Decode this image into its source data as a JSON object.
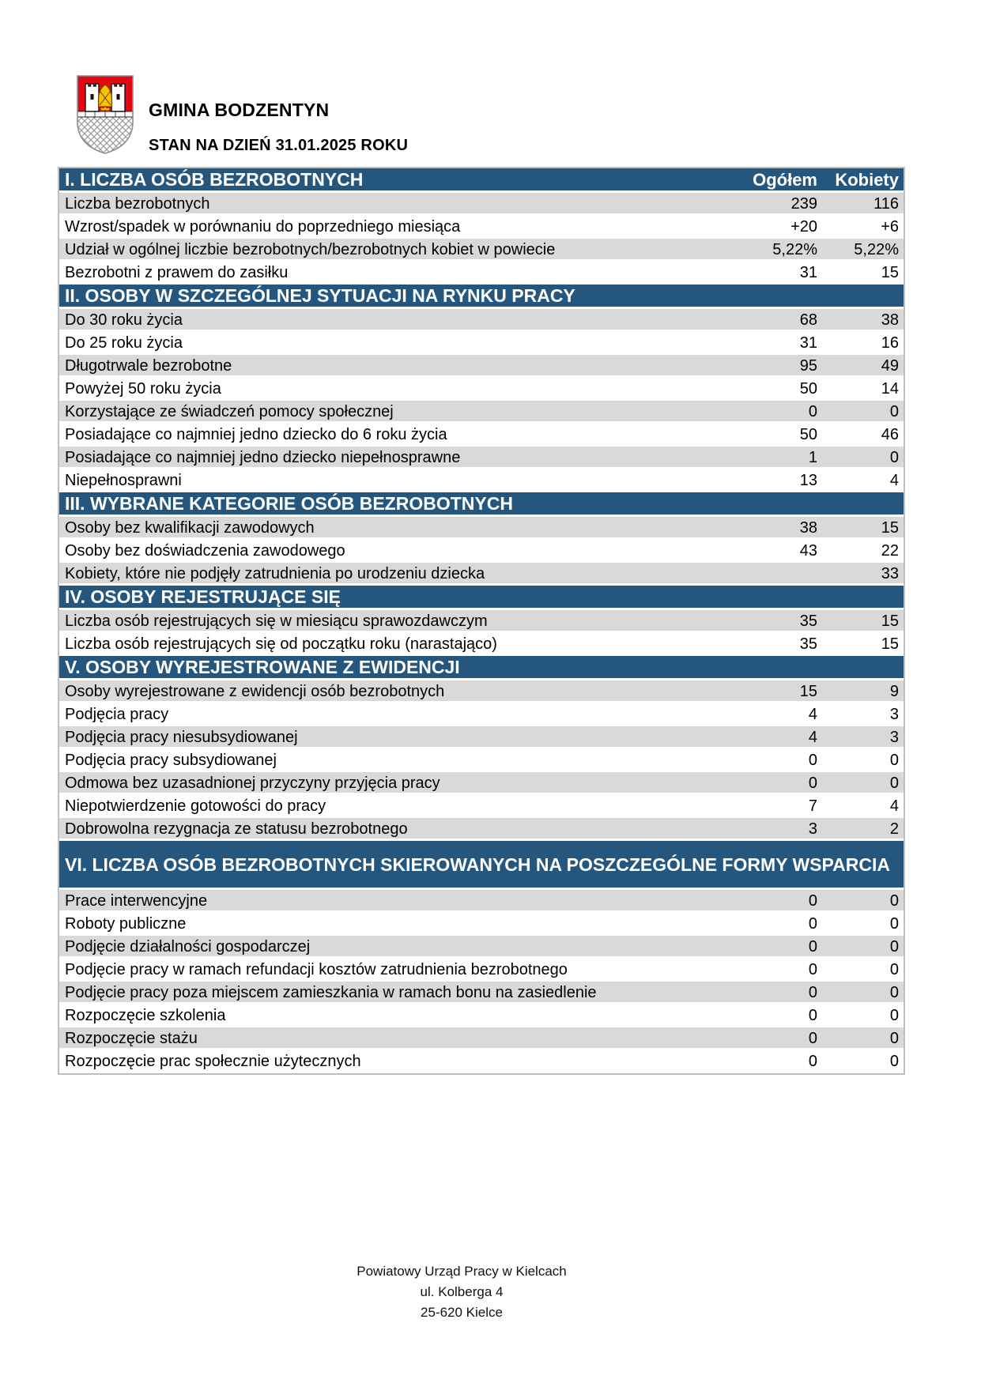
{
  "header": {
    "org_name": "GMINA BODZENTYN",
    "status_line": "STAN NA DZIEŃ 31.01.2025 ROKU",
    "logo_alt": "bodzentyn-coat-of-arms"
  },
  "table": {
    "columns": [
      "Ogółem",
      "Kobiety"
    ],
    "sections": [
      {
        "title": "I. LICZBA OSÓB BEZROBOTNYCH",
        "rows": [
          {
            "label": "Liczba bezrobotnych",
            "ogolem": "239",
            "kobiety": "116"
          },
          {
            "label": "Wzrost/spadek w porównaniu do poprzedniego miesiąca",
            "ogolem": "+20",
            "kobiety": "+6"
          },
          {
            "label": "Udział w ogólnej liczbie bezrobotnych/bezrobotnych kobiet w powiecie",
            "ogolem": "5,22%",
            "kobiety": "5,22%"
          },
          {
            "label": "Bezrobotni z prawem do zasiłku",
            "ogolem": "31",
            "kobiety": "15"
          }
        ]
      },
      {
        "title": "II. OSOBY W SZCZEGÓLNEJ SYTUACJI NA RYNKU PRACY",
        "rows": [
          {
            "label": "Do 30 roku życia",
            "ogolem": "68",
            "kobiety": "38"
          },
          {
            "label": "Do 25 roku życia",
            "ogolem": "31",
            "kobiety": "16"
          },
          {
            "label": "Długotrwale bezrobotne",
            "ogolem": "95",
            "kobiety": "49"
          },
          {
            "label": "Powyżej 50 roku życia",
            "ogolem": "50",
            "kobiety": "14"
          },
          {
            "label": "Korzystające ze świadczeń pomocy społecznej",
            "ogolem": "0",
            "kobiety": "0"
          },
          {
            "label": "Posiadające co najmniej jedno dziecko do 6 roku życia",
            "ogolem": "50",
            "kobiety": "46"
          },
          {
            "label": "Posiadające co najmniej jedno dziecko niepełnosprawne",
            "ogolem": "1",
            "kobiety": "0"
          },
          {
            "label": "Niepełnosprawni",
            "ogolem": "13",
            "kobiety": "4"
          }
        ]
      },
      {
        "title": "III. WYBRANE KATEGORIE OSÓB BEZROBOTNYCH",
        "rows": [
          {
            "label": "Osoby bez kwalifikacji zawodowych",
            "ogolem": "38",
            "kobiety": "15"
          },
          {
            "label": "Osoby bez doświadczenia zawodowego",
            "ogolem": "43",
            "kobiety": "22"
          },
          {
            "label": "Kobiety, które nie podjęły zatrudnienia po urodzeniu dziecka",
            "ogolem": "",
            "kobiety": "33"
          }
        ]
      },
      {
        "title": "IV. OSOBY REJESTRUJĄCE SIĘ",
        "rows": [
          {
            "label": "Liczba osób rejestrujących się w miesiącu sprawozdawczym",
            "ogolem": "35",
            "kobiety": "15"
          },
          {
            "label": "Liczba osób rejestrujących się od początku roku (narastająco)",
            "ogolem": "35",
            "kobiety": "15"
          }
        ]
      },
      {
        "title": "V. OSOBY WYREJESTROWANE Z EWIDENCJI",
        "rows": [
          {
            "label": "Osoby wyrejestrowane z ewidencji osób bezrobotnych",
            "ogolem": "15",
            "kobiety": "9"
          },
          {
            "label": "Podjęcia pracy",
            "ogolem": "4",
            "kobiety": "3"
          },
          {
            "label": "Podjęcia pracy niesubsydiowanej",
            "ogolem": "4",
            "kobiety": "3"
          },
          {
            "label": "Podjęcia pracy subsydiowanej",
            "ogolem": "0",
            "kobiety": "0"
          },
          {
            "label": "Odmowa bez uzasadnionej przyczyny przyjęcia pracy",
            "ogolem": "0",
            "kobiety": "0"
          },
          {
            "label": "Niepotwierdzenie gotowości do pracy",
            "ogolem": "7",
            "kobiety": "4"
          },
          {
            "label": "Dobrowolna rezygnacja ze statusu bezrobotnego",
            "ogolem": "3",
            "kobiety": "2"
          }
        ]
      },
      {
        "title": "VI. LICZBA OSÓB BEZROBOTNYCH SKIEROWANYCH NA POSZCZEGÓLNE FORMY WSPARCIA",
        "rows": [
          {
            "label": "Prace interwencyjne",
            "ogolem": "0",
            "kobiety": "0"
          },
          {
            "label": "Roboty publiczne",
            "ogolem": "0",
            "kobiety": "0"
          },
          {
            "label": "Podjęcie działalności gospodarczej",
            "ogolem": "0",
            "kobiety": "0"
          },
          {
            "label": "Podjęcie pracy w ramach refundacji kosztów zatrudnienia bezrobotnego",
            "ogolem": "0",
            "kobiety": "0"
          },
          {
            "label": "Podjęcie pracy poza miejscem zamieszkania w ramach bonu na zasiedlenie",
            "ogolem": "0",
            "kobiety": "0"
          },
          {
            "label": "Rozpoczęcie szkolenia",
            "ogolem": "0",
            "kobiety": "0"
          },
          {
            "label": "Rozpoczęcie stażu",
            "ogolem": "0",
            "kobiety": "0"
          },
          {
            "label": "Rozpoczęcie prac społecznie użytecznych",
            "ogolem": "0",
            "kobiety": "0"
          }
        ]
      }
    ]
  },
  "footer": {
    "line1": "Powiatowy Urząd Pracy w Kielcach",
    "line2": "ul. Kolberga 4",
    "line3": "25-620 Kielce"
  },
  "colors": {
    "section_header_bg": "#24567E",
    "row_alt_bg": "#D9D9D9",
    "table_border": "#BFBFBF",
    "shield_red": "#E30613",
    "shield_gold": "#F2C500"
  }
}
